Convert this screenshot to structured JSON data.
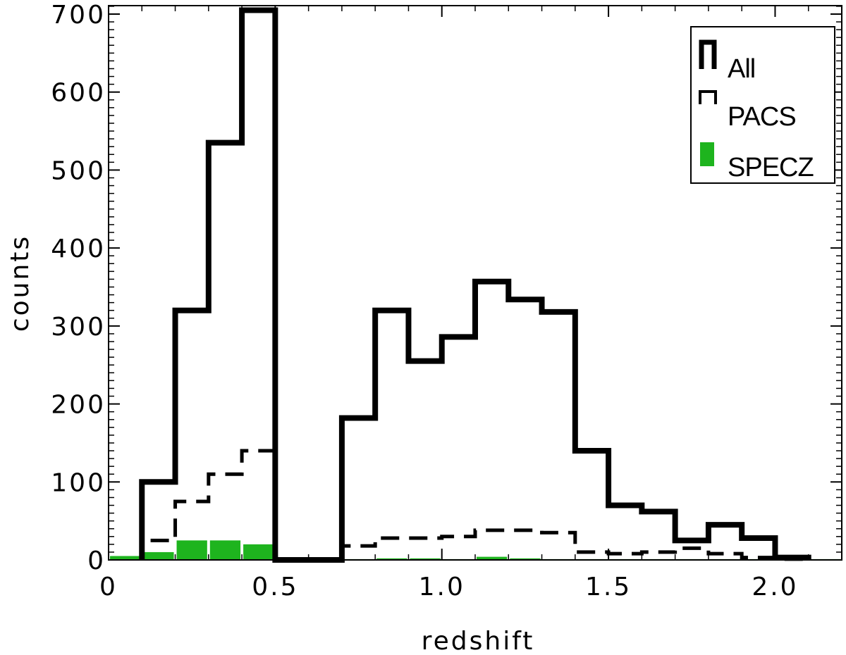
{
  "chart_data": {
    "type": "histogram",
    "xlabel": "redshift",
    "ylabel": "counts",
    "xlim": [
      0,
      2.2
    ],
    "ylim": [
      0,
      720
    ],
    "bin_width": 0.1,
    "x_ticks": [
      0,
      0.5,
      1.0,
      1.5,
      2.0
    ],
    "x_tick_labels": [
      "0",
      "0.5",
      "1.0",
      "1.5",
      "2.0"
    ],
    "y_ticks": [
      0,
      100,
      200,
      300,
      400,
      500,
      600,
      700
    ],
    "y_tick_labels": [
      "0",
      "100",
      "200",
      "300",
      "400",
      "500",
      "600",
      "700"
    ],
    "legend_position": "top-right",
    "series": [
      {
        "name": "All",
        "style": "solid-step",
        "color": "#000000",
        "bin_edges": [
          0.1,
          0.2,
          0.3,
          0.4,
          0.5,
          0.6,
          0.7,
          0.8,
          0.9,
          1.0,
          1.1,
          1.2,
          1.3,
          1.4,
          1.5,
          1.6,
          1.7,
          1.8,
          1.9,
          2.0,
          2.1
        ],
        "values": [
          100,
          320,
          535,
          705,
          0,
          0,
          182,
          320,
          255,
          286,
          357,
          334,
          318,
          140,
          70,
          62,
          25,
          45,
          28,
          3
        ]
      },
      {
        "name": "PACS",
        "style": "dashed-step",
        "color": "#000000",
        "bin_edges": [
          0.1,
          0.2,
          0.3,
          0.4,
          0.5,
          0.6,
          0.7,
          0.8,
          0.9,
          1.0,
          1.1,
          1.2,
          1.3,
          1.4,
          1.5,
          1.6,
          1.7,
          1.8,
          1.9,
          2.0,
          2.1
        ],
        "values": [
          25,
          75,
          110,
          140,
          0,
          0,
          18,
          28,
          28,
          30,
          38,
          38,
          35,
          10,
          8,
          10,
          15,
          8,
          3,
          1
        ]
      },
      {
        "name": "SPECZ",
        "style": "filled-bar",
        "color": "#1eb41e",
        "bin_edges": [
          0,
          0.1,
          0.2,
          0.3,
          0.4,
          0.5,
          0.6,
          0.7,
          0.8,
          0.9,
          1.0,
          1.1,
          1.2,
          1.3,
          1.4,
          1.5,
          1.6,
          1.7,
          1.8,
          1.9,
          2.0,
          2.1,
          2.2
        ],
        "values": [
          5,
          10,
          25,
          25,
          20,
          3,
          2,
          1,
          2,
          2,
          1,
          4,
          2,
          1,
          1,
          1,
          1,
          1,
          1,
          1,
          1,
          1
        ]
      }
    ]
  }
}
